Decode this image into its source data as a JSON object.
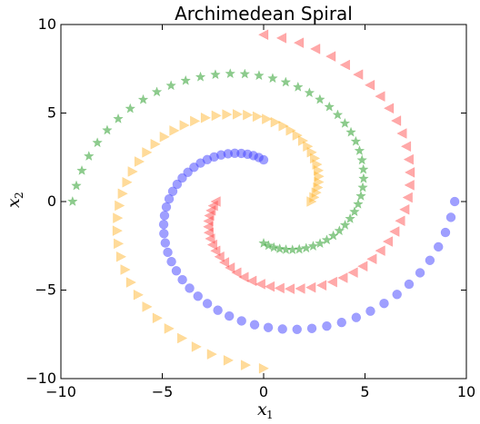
{
  "chart_data": {
    "type": "scatter",
    "title": "Archimedean Spiral",
    "xlabel": "x",
    "xlabel_sub": "1",
    "ylabel": "x",
    "ylabel_sub": "2",
    "xlim": [
      -10,
      10
    ],
    "ylim": [
      -10,
      10
    ],
    "xticks": [
      -10,
      -5,
      0,
      5,
      10
    ],
    "yticks": [
      -10,
      -5,
      0,
      5,
      10
    ],
    "xtick_labels": [
      "−10",
      "−5",
      "0",
      "5",
      "10"
    ],
    "ytick_labels": [
      "−10",
      "−5",
      "0",
      "5",
      "10"
    ],
    "grid": false,
    "spiral": {
      "n_points": 50,
      "theta_start": 1.5708,
      "theta_end": 6.2832,
      "radius_per_radian": 1.5,
      "arm_offsets_deg": [
        0,
        90,
        180,
        270
      ]
    },
    "series": [
      {
        "marker": "circle",
        "color": "#4040ff",
        "opacity": 0.5,
        "arm": 0
      },
      {
        "marker": "triangle-left",
        "color": "#ff4040",
        "opacity": 0.45,
        "arm": 1
      },
      {
        "marker": "star",
        "color": "#30a030",
        "opacity": 0.55,
        "arm": 2
      },
      {
        "marker": "triangle-right",
        "color": "#ffb020",
        "opacity": 0.45,
        "arm": 3
      }
    ]
  }
}
